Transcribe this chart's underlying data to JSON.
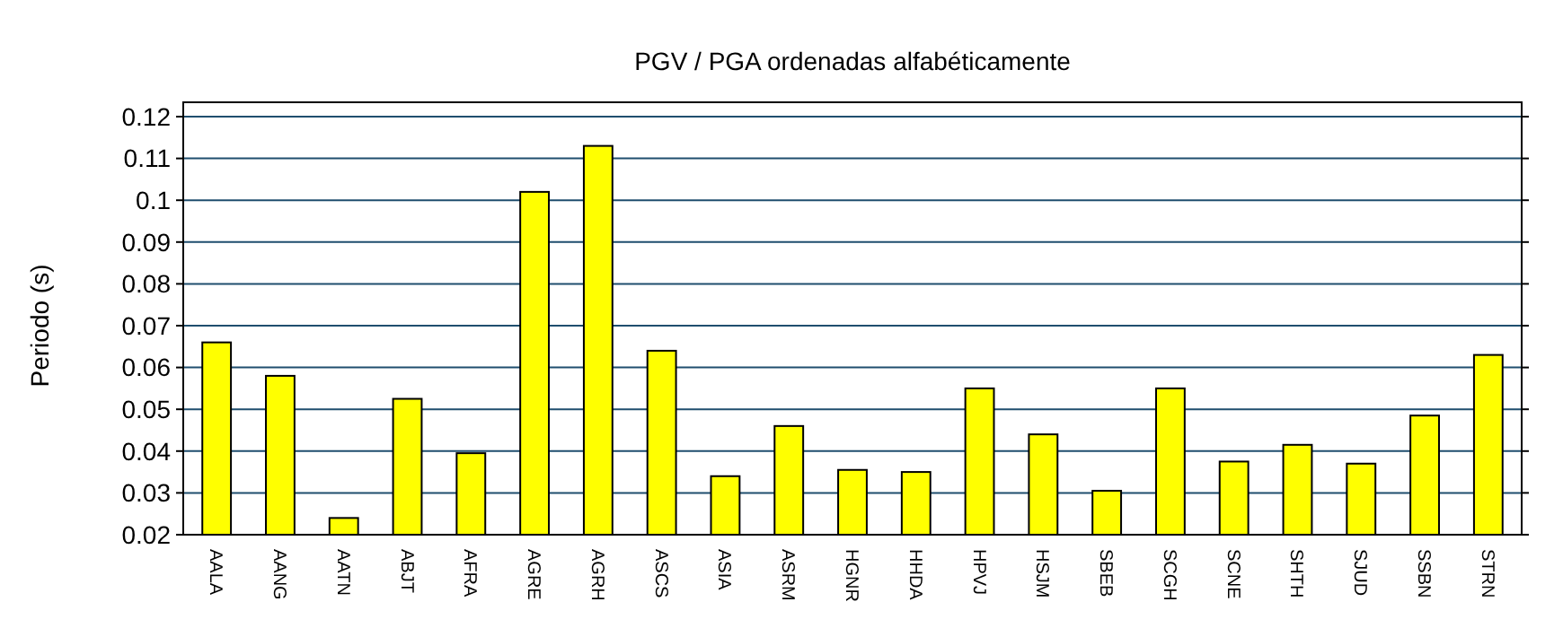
{
  "chart_data": {
    "type": "bar",
    "title": "PGV / PGA ordenadas alfabéticamente",
    "ylabel": "Periodo (s)",
    "categories": [
      "AALA",
      "AANG",
      "AATN",
      "ABJT",
      "AFRA",
      "AGRE",
      "AGRH",
      "ASCS",
      "ASIA",
      "ASRM",
      "HGNR",
      "HHDA",
      "HPVJ",
      "HSJM",
      "SBEB",
      "SCGH",
      "SCNE",
      "SHTH",
      "SJUD",
      "SSBN",
      "STRN"
    ],
    "values": [
      0.066,
      0.058,
      0.024,
      0.0525,
      0.0395,
      0.102,
      0.113,
      0.064,
      0.034,
      0.046,
      0.0355,
      0.035,
      0.055,
      0.044,
      0.0305,
      0.055,
      0.0375,
      0.0415,
      0.037,
      0.0485,
      0.063
    ],
    "color": "#ffff00",
    "ylim": [
      0.02,
      0.12
    ],
    "yticks": [
      0.02,
      0.03,
      0.04,
      0.05,
      0.06,
      0.07,
      0.08,
      0.09,
      0.1,
      0.11,
      0.12
    ],
    "grid": "y"
  }
}
